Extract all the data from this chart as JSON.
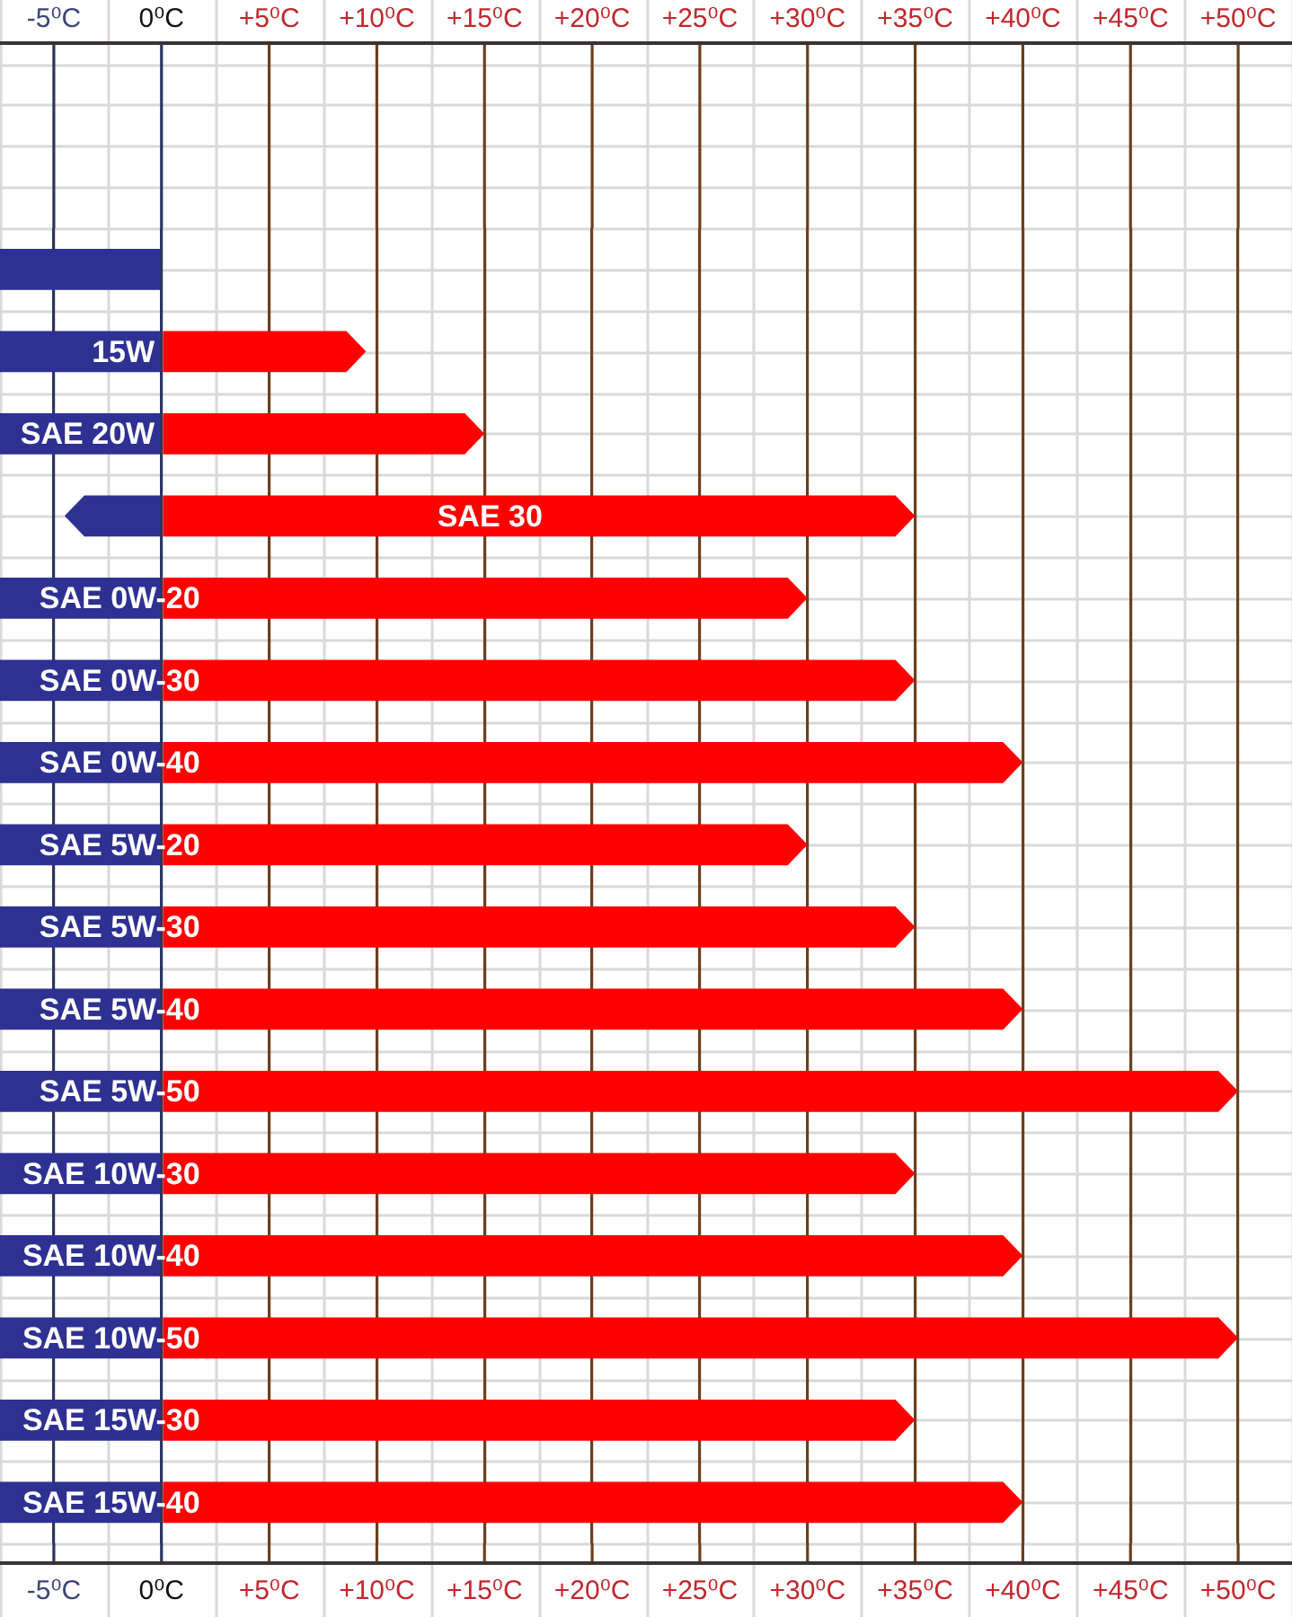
{
  "chart_data": {
    "type": "bar",
    "orientation": "horizontal",
    "stacked": true,
    "legend": false,
    "grid": true,
    "categories": [
      null,
      "15W",
      "SAE 20W",
      "SAE 30",
      "SAE 0W-20",
      "SAE 0W-30",
      "SAE 0W-40",
      "SAE 5W-20",
      "SAE 5W-30",
      "SAE 5W-40",
      "SAE 5W-50",
      "SAE 10W-30",
      "SAE 10W-40",
      "SAE 10W-50",
      "SAE 15W-30",
      "SAE 15W-40"
    ],
    "series": [
      {
        "color": "#2e3192",
        "values": [
          -7.5,
          -7.5,
          -7.5,
          -4.5,
          -7.5,
          -7.5,
          -7.5,
          -7.5,
          -7.5,
          -7.5,
          -7.5,
          -7.5,
          -7.5,
          -7.5,
          -7.5,
          -7.5
        ]
      },
      {
        "color": "#ff0000",
        "values": [
          null,
          9.5,
          15,
          35,
          30,
          35,
          40,
          30,
          35,
          40,
          50,
          35,
          40,
          50,
          35,
          40
        ]
      }
    ],
    "xlim": [
      -7.5,
      52.5
    ],
    "xticks": [
      {
        "value": -5,
        "label": "-5⁰C"
      },
      {
        "value": 0,
        "label": "0⁰C"
      },
      {
        "value": 5,
        "label": "+5⁰C"
      },
      {
        "value": 10,
        "label": "+10⁰C"
      },
      {
        "value": 15,
        "label": "+15⁰C"
      },
      {
        "value": 20,
        "label": "+20⁰C"
      },
      {
        "value": 25,
        "label": "+25⁰C"
      },
      {
        "value": 30,
        "label": "+30⁰C"
      },
      {
        "value": 35,
        "label": "+35⁰C"
      },
      {
        "value": 40,
        "label": "+40⁰C"
      },
      {
        "value": 45,
        "label": "+45⁰C"
      },
      {
        "value": 50,
        "label": "+50⁰C"
      }
    ],
    "x2lim": [
      -7.5,
      52.5
    ],
    "x2ticks": [
      {
        "value": -5,
        "label": "-5⁰C"
      },
      {
        "value": 0,
        "label": "0⁰C"
      },
      {
        "value": 5,
        "label": "+5⁰C"
      },
      {
        "value": 10,
        "label": "+10⁰C"
      },
      {
        "value": 15,
        "label": "+15⁰C"
      },
      {
        "value": 20,
        "label": "+20⁰C"
      },
      {
        "value": 25,
        "label": "+25⁰C"
      },
      {
        "value": 30,
        "label": "+30⁰C"
      },
      {
        "value": 35,
        "label": "+35⁰C"
      },
      {
        "value": 40,
        "label": "+40⁰C"
      },
      {
        "value": 45,
        "label": "+45⁰C"
      },
      {
        "value": 50,
        "label": "+50⁰C"
      }
    ]
  }
}
